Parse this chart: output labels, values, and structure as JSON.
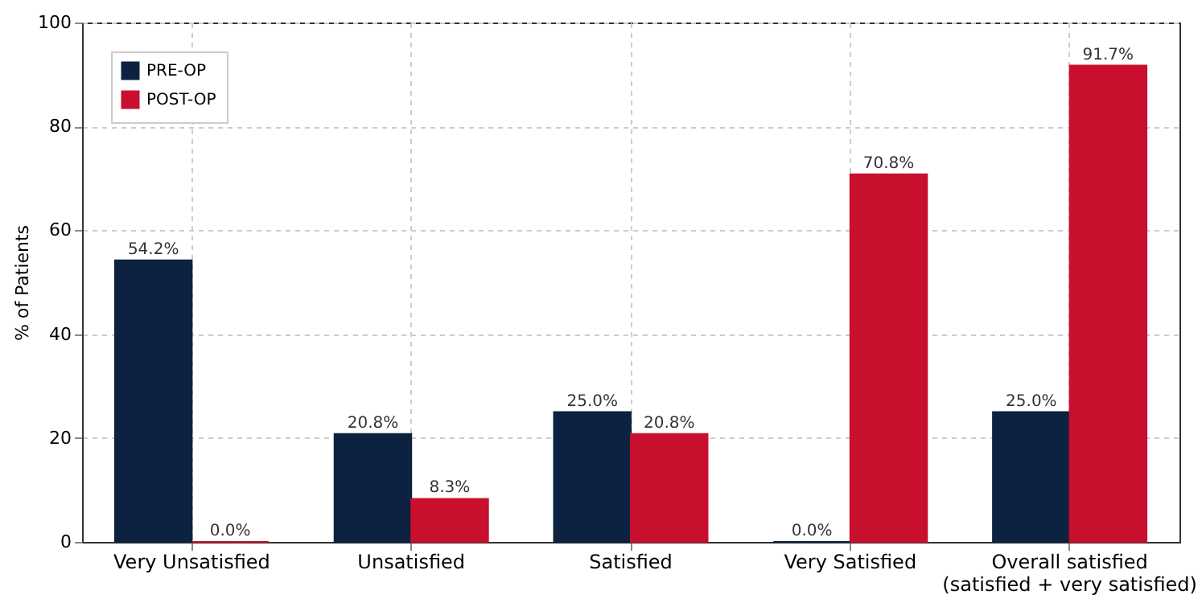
{
  "chart_data": {
    "type": "bar",
    "ylabel": "% of Patients",
    "categories": [
      "Very Unsatisfied",
      "Unsatisfied",
      "Satisfied",
      "Very Satisfied",
      "Overall satisfied\n(satisfied + very satisfied)"
    ],
    "series": [
      {
        "name": "PRE-OP",
        "color": "#0d2240",
        "values": [
          54.2,
          20.8,
          25.0,
          0.0,
          25.0
        ],
        "value_labels": [
          "54.2%",
          "20.8%",
          "25.0%",
          "0.0%",
          "25.0%"
        ]
      },
      {
        "name": "POST-OP",
        "color": "#c8102e",
        "values": [
          0.0,
          8.3,
          20.8,
          70.8,
          91.7
        ],
        "value_labels": [
          "0.0%",
          "8.3%",
          "20.8%",
          "70.8%",
          "91.7%"
        ]
      }
    ],
    "ylim": [
      0,
      100
    ],
    "yticks": [
      0,
      20,
      40,
      60,
      80,
      100
    ],
    "grid": true,
    "legend": "top left"
  }
}
